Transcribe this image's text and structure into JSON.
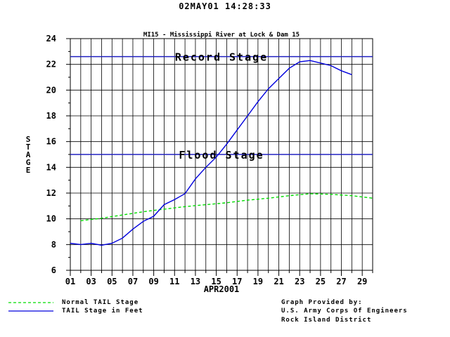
{
  "timestamp": "02MAY01   14:28:33",
  "chart_data": {
    "type": "line",
    "title": "MI15 - Mississippi River at Lock & Dam 15",
    "ylabel": "STAGE",
    "xlabel": "APR2001",
    "ylim": [
      6,
      24
    ],
    "yticks": [
      6,
      8,
      10,
      12,
      14,
      16,
      18,
      20,
      22,
      24
    ],
    "xlim": [
      1,
      30
    ],
    "xtick_labels": [
      "01",
      "03",
      "05",
      "07",
      "09",
      "11",
      "13",
      "15",
      "17",
      "19",
      "21",
      "23",
      "25",
      "27",
      "29"
    ],
    "grid": true,
    "reference_lines": [
      {
        "label": "Record Stage",
        "value": 22.6,
        "color": "#2020c0"
      },
      {
        "label": "Flood Stage",
        "value": 15.0,
        "color": "#2020c0"
      }
    ],
    "series": [
      {
        "name": "Normal TAIL Stage",
        "color": "#00dd00",
        "dashed": true,
        "x": [
          2,
          4,
          6,
          8,
          10,
          12,
          14,
          16,
          18,
          20,
          22,
          24,
          26,
          28,
          30
        ],
        "y": [
          9.85,
          10.05,
          10.3,
          10.55,
          10.75,
          10.95,
          11.1,
          11.25,
          11.45,
          11.6,
          11.8,
          11.95,
          11.9,
          11.8,
          11.6
        ]
      },
      {
        "name": "TAIL Stage in Feet",
        "color": "#0000dd",
        "dashed": false,
        "x": [
          1,
          2,
          3,
          4,
          5,
          6,
          7,
          8,
          9,
          10,
          11,
          12,
          13,
          14,
          15,
          16,
          17,
          18,
          19,
          20,
          21,
          22,
          23,
          24,
          25,
          26,
          27,
          28,
          29
        ],
        "y": [
          8.1,
          8.0,
          8.1,
          7.95,
          8.1,
          8.5,
          9.2,
          9.8,
          10.2,
          11.1,
          11.5,
          11.95,
          13.1,
          14.0,
          14.8,
          15.8,
          16.9,
          18.0,
          19.1,
          20.1,
          20.9,
          21.7,
          22.2,
          22.3,
          22.1,
          21.9,
          21.5,
          21.2,
          null
        ]
      }
    ]
  },
  "legend": {
    "normal_label": "Normal TAIL Stage",
    "tail_label": "TAIL Stage in Feet"
  },
  "credit": {
    "line1": "Graph Provided by:",
    "line2": "U.S. Army Corps Of Engineers",
    "line3": "Rock Island District"
  }
}
